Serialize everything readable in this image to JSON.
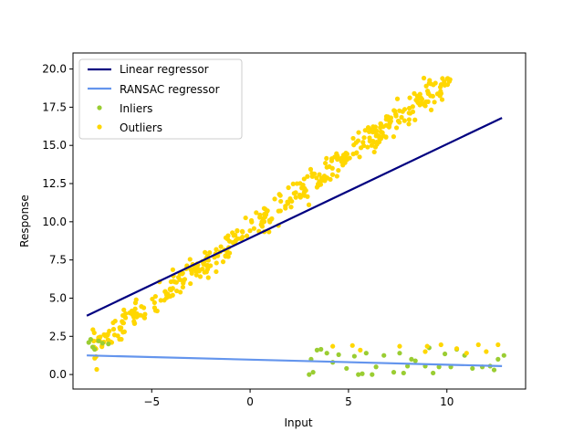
{
  "chart_data": {
    "type": "scatter",
    "title": "",
    "xlabel": "Input",
    "ylabel": "Response",
    "xlim": [
      -9.0,
      14.0
    ],
    "ylim": [
      -0.95,
      21.05
    ],
    "xticks": [
      -5,
      0,
      5,
      10
    ],
    "xtick_labels": [
      "−5",
      "0",
      "5",
      "10"
    ],
    "yticks": [
      0.0,
      2.5,
      5.0,
      7.5,
      10.0,
      12.5,
      15.0,
      17.5,
      20.0
    ],
    "ytick_labels": [
      "0.0",
      "2.5",
      "5.0",
      "7.5",
      "10.0",
      "12.5",
      "15.0",
      "17.5",
      "20.0"
    ],
    "grid": false,
    "legend_position": "top-left",
    "colors": {
      "linear": "#000080",
      "ransac": "#6495ED",
      "inliers": "#9ACD32",
      "outliers": "#FFD700"
    },
    "lines": [
      {
        "name": "Linear regressor",
        "x": [
          -8.3,
          12.8
        ],
        "y": [
          3.85,
          16.8
        ]
      },
      {
        "name": "RANSAC regressor",
        "x": [
          -8.3,
          12.8
        ],
        "y": [
          1.25,
          0.55
        ]
      }
    ],
    "scatter": [
      {
        "name": "Inliers",
        "points": [
          [
            -8.2,
            2.1
          ],
          [
            -8.0,
            1.8
          ],
          [
            -7.9,
            1.65
          ],
          [
            -7.5,
            2.05
          ],
          [
            -7.2,
            2.0
          ],
          [
            -8.1,
            2.3
          ],
          [
            -7.7,
            2.2
          ],
          [
            3.0,
            0.0
          ],
          [
            3.1,
            1.0
          ],
          [
            3.2,
            0.15
          ],
          [
            3.4,
            1.6
          ],
          [
            3.6,
            1.65
          ],
          [
            3.9,
            1.4
          ],
          [
            4.2,
            0.8
          ],
          [
            4.5,
            1.3
          ],
          [
            4.9,
            0.4
          ],
          [
            5.3,
            1.2
          ],
          [
            5.5,
            0.0
          ],
          [
            5.7,
            0.05
          ],
          [
            5.9,
            1.4
          ],
          [
            6.2,
            0.0
          ],
          [
            6.4,
            0.5
          ],
          [
            6.8,
            1.25
          ],
          [
            7.3,
            0.15
          ],
          [
            7.6,
            1.4
          ],
          [
            7.8,
            0.1
          ],
          [
            8.0,
            0.55
          ],
          [
            8.2,
            1.0
          ],
          [
            8.4,
            0.9
          ],
          [
            8.9,
            0.55
          ],
          [
            9.1,
            1.75
          ],
          [
            9.3,
            0.1
          ],
          [
            9.6,
            0.5
          ],
          [
            9.9,
            1.35
          ],
          [
            10.2,
            0.5
          ],
          [
            10.5,
            1.65
          ],
          [
            10.9,
            1.25
          ],
          [
            11.3,
            0.4
          ],
          [
            11.8,
            0.5
          ],
          [
            12.2,
            0.55
          ],
          [
            12.4,
            0.3
          ],
          [
            12.6,
            1.0
          ],
          [
            12.9,
            1.25
          ]
        ]
      },
      {
        "name": "Outliers",
        "points": [
          [
            4.2,
            1.85
          ],
          [
            5.2,
            1.9
          ],
          [
            5.6,
            1.6
          ],
          [
            7.6,
            1.85
          ],
          [
            9.0,
            1.85
          ],
          [
            9.7,
            1.95
          ],
          [
            10.5,
            1.7
          ],
          [
            11.6,
            1.95
          ],
          [
            12.6,
            1.95
          ],
          [
            8.9,
            1.5
          ],
          [
            11.0,
            1.4
          ],
          [
            12.0,
            1.5
          ]
        ]
      }
    ],
    "outlier_band": {
      "x_start": -8.0,
      "x_end": 10.2,
      "slope": 0.975,
      "intercept": 9.5,
      "n": 420,
      "noise": 0.45
    }
  }
}
